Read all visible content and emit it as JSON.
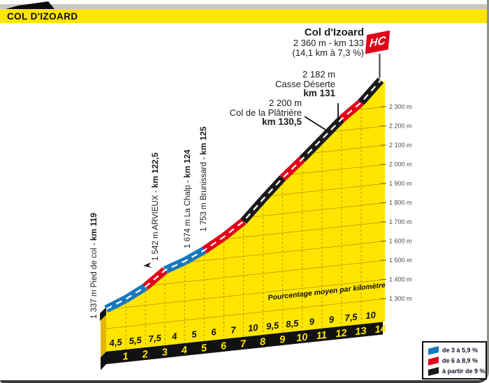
{
  "banner": {
    "title": "COL D'IZOARD"
  },
  "summit": {
    "name": "Col d'Izoard",
    "line1": "2 360 m - km 133",
    "line2": "(14,1 km à 7,3 %)",
    "badge": "HC"
  },
  "waypoints_top": [
    {
      "elevation": "2 182 m",
      "name": "Casse Déserte",
      "km": "km 131"
    },
    {
      "elevation": "2 200 m",
      "name": "Col de la Plâtrière",
      "km": "km 130,5"
    }
  ],
  "waypoints_left": [
    {
      "text": "1 337 m Pied de col - ",
      "km": "km 119"
    },
    {
      "text": "1 542 m ARVIEUX - ",
      "km": "km 122,5"
    },
    {
      "text": "1 674 m La Chalp - ",
      "km": "km 124"
    },
    {
      "text": "1 753 m Brunissard - ",
      "km": "km 125"
    }
  ],
  "axis": {
    "label": "Pourcentage moyen par kilomètre",
    "elevations": [
      "2 300 m",
      "2 200 m",
      "2 100 m",
      "2 000 m",
      "1 900 m",
      "1 800 m",
      "1 700 m",
      "1 600 m",
      "1 500 m",
      "1 400 m",
      "1 300 m"
    ],
    "km_labels": [
      "1",
      "2",
      "3",
      "4",
      "5",
      "6",
      "7",
      "8",
      "9",
      "10",
      "11",
      "12",
      "13",
      "14"
    ],
    "gradients": [
      "4,5",
      "5,5",
      "7,5",
      "4",
      "5",
      "6",
      "7",
      "10",
      "9,5",
      "8,5",
      "9",
      "9",
      "7,5",
      "10"
    ]
  },
  "legend": [
    {
      "color": "#1878be",
      "label": "de 3 à 5,9 %"
    },
    {
      "color": "#e2001a",
      "label": "de 6 à 8,9 %"
    },
    {
      "color": "#1a1a1a",
      "label": "à partir de 9 %"
    }
  ],
  "colors": {
    "yellow": "#ffe600",
    "yellow_face": "#e3b700",
    "grid": "#bb9900",
    "tick": "#8a7400",
    "band": "#111111",
    "red": "#e2001a",
    "pole": "#3a3a3a"
  },
  "chart_data": {
    "type": "area",
    "title": "Col d'Izoard — profil de la montée",
    "category": "HC",
    "length_km": 14.1,
    "avg_gradient_pct": 7.3,
    "start": {
      "name": "Pied de col",
      "km": 119,
      "elevation_m": 1337
    },
    "summit": {
      "name": "Col d'Izoard",
      "km": 133,
      "elevation_m": 2360
    },
    "waypoints": [
      {
        "name": "Pied de col",
        "km": 119,
        "elevation_m": 1337
      },
      {
        "name": "ARVIEUX",
        "km": 122.5,
        "elevation_m": 1542
      },
      {
        "name": "La Chalp",
        "km": 124,
        "elevation_m": 1674
      },
      {
        "name": "Brunissard",
        "km": 125,
        "elevation_m": 1753
      },
      {
        "name": "Col de la Plâtrière",
        "km": 130.5,
        "elevation_m": 2200
      },
      {
        "name": "Casse Déserte",
        "km": 131,
        "elevation_m": 2182
      },
      {
        "name": "Col d'Izoard",
        "km": 133,
        "elevation_m": 2360
      }
    ],
    "km_ticks": [
      1,
      2,
      3,
      4,
      5,
      6,
      7,
      8,
      9,
      10,
      11,
      12,
      13,
      14
    ],
    "gradients_pct_per_km": [
      4.5,
      5.5,
      7.5,
      4,
      5,
      6,
      7,
      10,
      9.5,
      8.5,
      9,
      9,
      7.5,
      10
    ],
    "elevation_axis_m": [
      2300,
      2200,
      2100,
      2000,
      1900,
      1800,
      1700,
      1600,
      1500,
      1400,
      1300
    ],
    "gradient_color_rule": [
      {
        "min_pct": 3,
        "max_pct": 5.9,
        "color": "#1878be"
      },
      {
        "min_pct": 6,
        "max_pct": 8.9,
        "color": "#e2001a"
      },
      {
        "min_pct": 9,
        "max_pct": null,
        "color": "#1a1a1a"
      }
    ],
    "grid": true,
    "legend_position": "bottom-right"
  }
}
